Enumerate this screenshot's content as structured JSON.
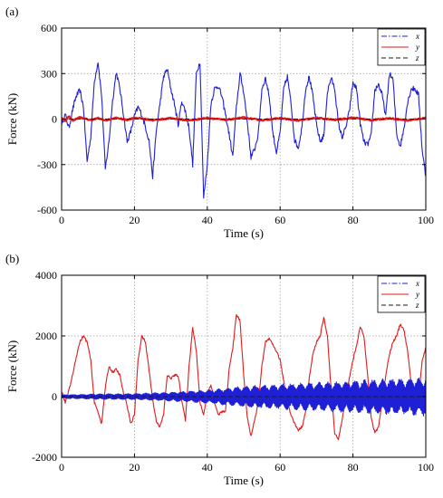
{
  "chart_data": [
    {
      "panel": "(a)",
      "type": "line",
      "xlabel": "Time (s)",
      "ylabel": "Force (kN)",
      "xlim": [
        0,
        100
      ],
      "ylim": [
        -600,
        600
      ],
      "xticks": [
        0,
        20,
        40,
        60,
        80,
        100
      ],
      "yticks": [
        -600,
        -300,
        0,
        300,
        600
      ],
      "grid": true,
      "legend_position": "top-right",
      "series": [
        {
          "name": "x",
          "color": "#1f1fd6",
          "dash": "dashdot",
          "noise": 18,
          "x": [
            0,
            1,
            2,
            3,
            4,
            5,
            6,
            7,
            8,
            9,
            10,
            11,
            12,
            13,
            14,
            15,
            16,
            17,
            18,
            19,
            20,
            21,
            22,
            23,
            24,
            25,
            26,
            27,
            28,
            29,
            30,
            31,
            32,
            33,
            34,
            35,
            36,
            37,
            38,
            39,
            40,
            41,
            42,
            43,
            44,
            45,
            46,
            47,
            48,
            49,
            50,
            51,
            52,
            53,
            54,
            55,
            56,
            57,
            58,
            59,
            60,
            61,
            62,
            63,
            64,
            65,
            66,
            67,
            68,
            69,
            70,
            71,
            72,
            73,
            74,
            75,
            76,
            77,
            78,
            79,
            80,
            81,
            82,
            83,
            84,
            85,
            86,
            87,
            88,
            89,
            90,
            91,
            92,
            93,
            94,
            95,
            96,
            97,
            98,
            99,
            100
          ],
          "y": [
            -30,
            30,
            -60,
            60,
            150,
            190,
            80,
            -280,
            -120,
            250,
            380,
            150,
            -330,
            -150,
            120,
            310,
            200,
            30,
            -150,
            -80,
            20,
            80,
            30,
            -50,
            -140,
            -380,
            -80,
            100,
            280,
            330,
            200,
            100,
            -40,
            120,
            50,
            -60,
            -300,
            300,
            380,
            -520,
            -300,
            100,
            200,
            220,
            150,
            30,
            -100,
            -250,
            80,
            300,
            180,
            -20,
            -250,
            -200,
            -100,
            200,
            270,
            150,
            -90,
            -220,
            -90,
            200,
            280,
            100,
            -140,
            -190,
            -50,
            200,
            280,
            150,
            -40,
            -150,
            -110,
            180,
            270,
            200,
            -30,
            -120,
            -60,
            50,
            240,
            200,
            -30,
            -150,
            -170,
            -110,
            190,
            230,
            160,
            20,
            300,
            260,
            -100,
            -180,
            -60,
            110,
            200,
            200,
            160,
            -200,
            -380
          ]
        },
        {
          "name": "y",
          "color": "#e01a1a",
          "dash": "solid",
          "noise": 4,
          "x": [
            0,
            1,
            2,
            3,
            5,
            8,
            10,
            12,
            15,
            18,
            20,
            25,
            30,
            35,
            40,
            45,
            50,
            55,
            60,
            65,
            70,
            75,
            80,
            85,
            90,
            95,
            100
          ],
          "y": [
            10,
            -15,
            20,
            -10,
            12,
            -8,
            6,
            -10,
            8,
            -6,
            10,
            -8,
            6,
            -10,
            8,
            -6,
            10,
            -8,
            6,
            -10,
            8,
            -6,
            10,
            -8,
            6,
            -10,
            8
          ]
        },
        {
          "name": "z",
          "color": "#1a1a1a",
          "dash": "dashed",
          "noise": 0,
          "x": [
            0,
            100
          ],
          "y": [
            0,
            0
          ]
        }
      ]
    },
    {
      "panel": "(b)",
      "type": "line",
      "xlabel": "Time (s)",
      "ylabel": "Force (kN)",
      "xlim": [
        0,
        100
      ],
      "ylim": [
        -2000,
        4000
      ],
      "xticks": [
        0,
        20,
        40,
        60,
        80,
        100
      ],
      "yticks": [
        -2000,
        0,
        2000,
        4000
      ],
      "grid": true,
      "legend_position": "top-right",
      "series": [
        {
          "name": "x",
          "color": "#1f1fd6",
          "dash": "dashdot",
          "envelope": true,
          "x": [
            0,
            10,
            20,
            30,
            40,
            50,
            60,
            70,
            80,
            90,
            100
          ],
          "y": [
            60,
            90,
            100,
            150,
            220,
            350,
            420,
            480,
            540,
            600,
            650
          ]
        },
        {
          "name": "y",
          "color": "#e01a1a",
          "dash": "solid",
          "noise": 40,
          "x": [
            0,
            1,
            2,
            3,
            4,
            5,
            6,
            7,
            8,
            9,
            10,
            11,
            12,
            13,
            14,
            15,
            16,
            17,
            18,
            19,
            20,
            21,
            22,
            23,
            24,
            25,
            26,
            27,
            28,
            29,
            30,
            31,
            32,
            33,
            34,
            35,
            36,
            37,
            38,
            39,
            40,
            41,
            42,
            43,
            44,
            45,
            46,
            47,
            48,
            49,
            50,
            51,
            52,
            53,
            54,
            55,
            56,
            57,
            58,
            59,
            60,
            61,
            62,
            63,
            64,
            65,
            66,
            67,
            68,
            69,
            70,
            71,
            72,
            73,
            74,
            75,
            76,
            77,
            78,
            79,
            80,
            81,
            82,
            83,
            84,
            85,
            86,
            87,
            88,
            89,
            90,
            91,
            92,
            93,
            94,
            95,
            96,
            97,
            98,
            99,
            100
          ],
          "y": [
            200,
            -200,
            200,
            700,
            1300,
            1800,
            2000,
            1800,
            1200,
            -200,
            -500,
            -900,
            300,
            1000,
            800,
            900,
            700,
            100,
            -300,
            -900,
            -600,
            1200,
            2000,
            1800,
            900,
            -100,
            -800,
            -1000,
            -600,
            700,
            600,
            700,
            700,
            -100,
            -800,
            1000,
            2300,
            1500,
            -200,
            -600,
            100,
            400,
            -200,
            -600,
            -500,
            -500,
            900,
            1600,
            2700,
            2500,
            700,
            -700,
            -1300,
            -800,
            -200,
            1000,
            1800,
            1900,
            1700,
            1500,
            1200,
            500,
            -200,
            -600,
            -900,
            -1100,
            -1000,
            -500,
            600,
            1400,
            1800,
            2000,
            2600,
            2000,
            200,
            -1200,
            -1400,
            -800,
            -100,
            600,
            1200,
            1700,
            2300,
            2000,
            800,
            -700,
            -1200,
            -1000,
            -200,
            700,
            1400,
            1800,
            2000,
            2400,
            2200,
            1500,
            400,
            -400,
            -100,
            1200,
            1600
          ]
        },
        {
          "name": "z",
          "color": "#1a1a1a",
          "dash": "dashed",
          "noise": 0,
          "x": [
            0,
            100
          ],
          "y": [
            0,
            0
          ]
        }
      ]
    }
  ]
}
